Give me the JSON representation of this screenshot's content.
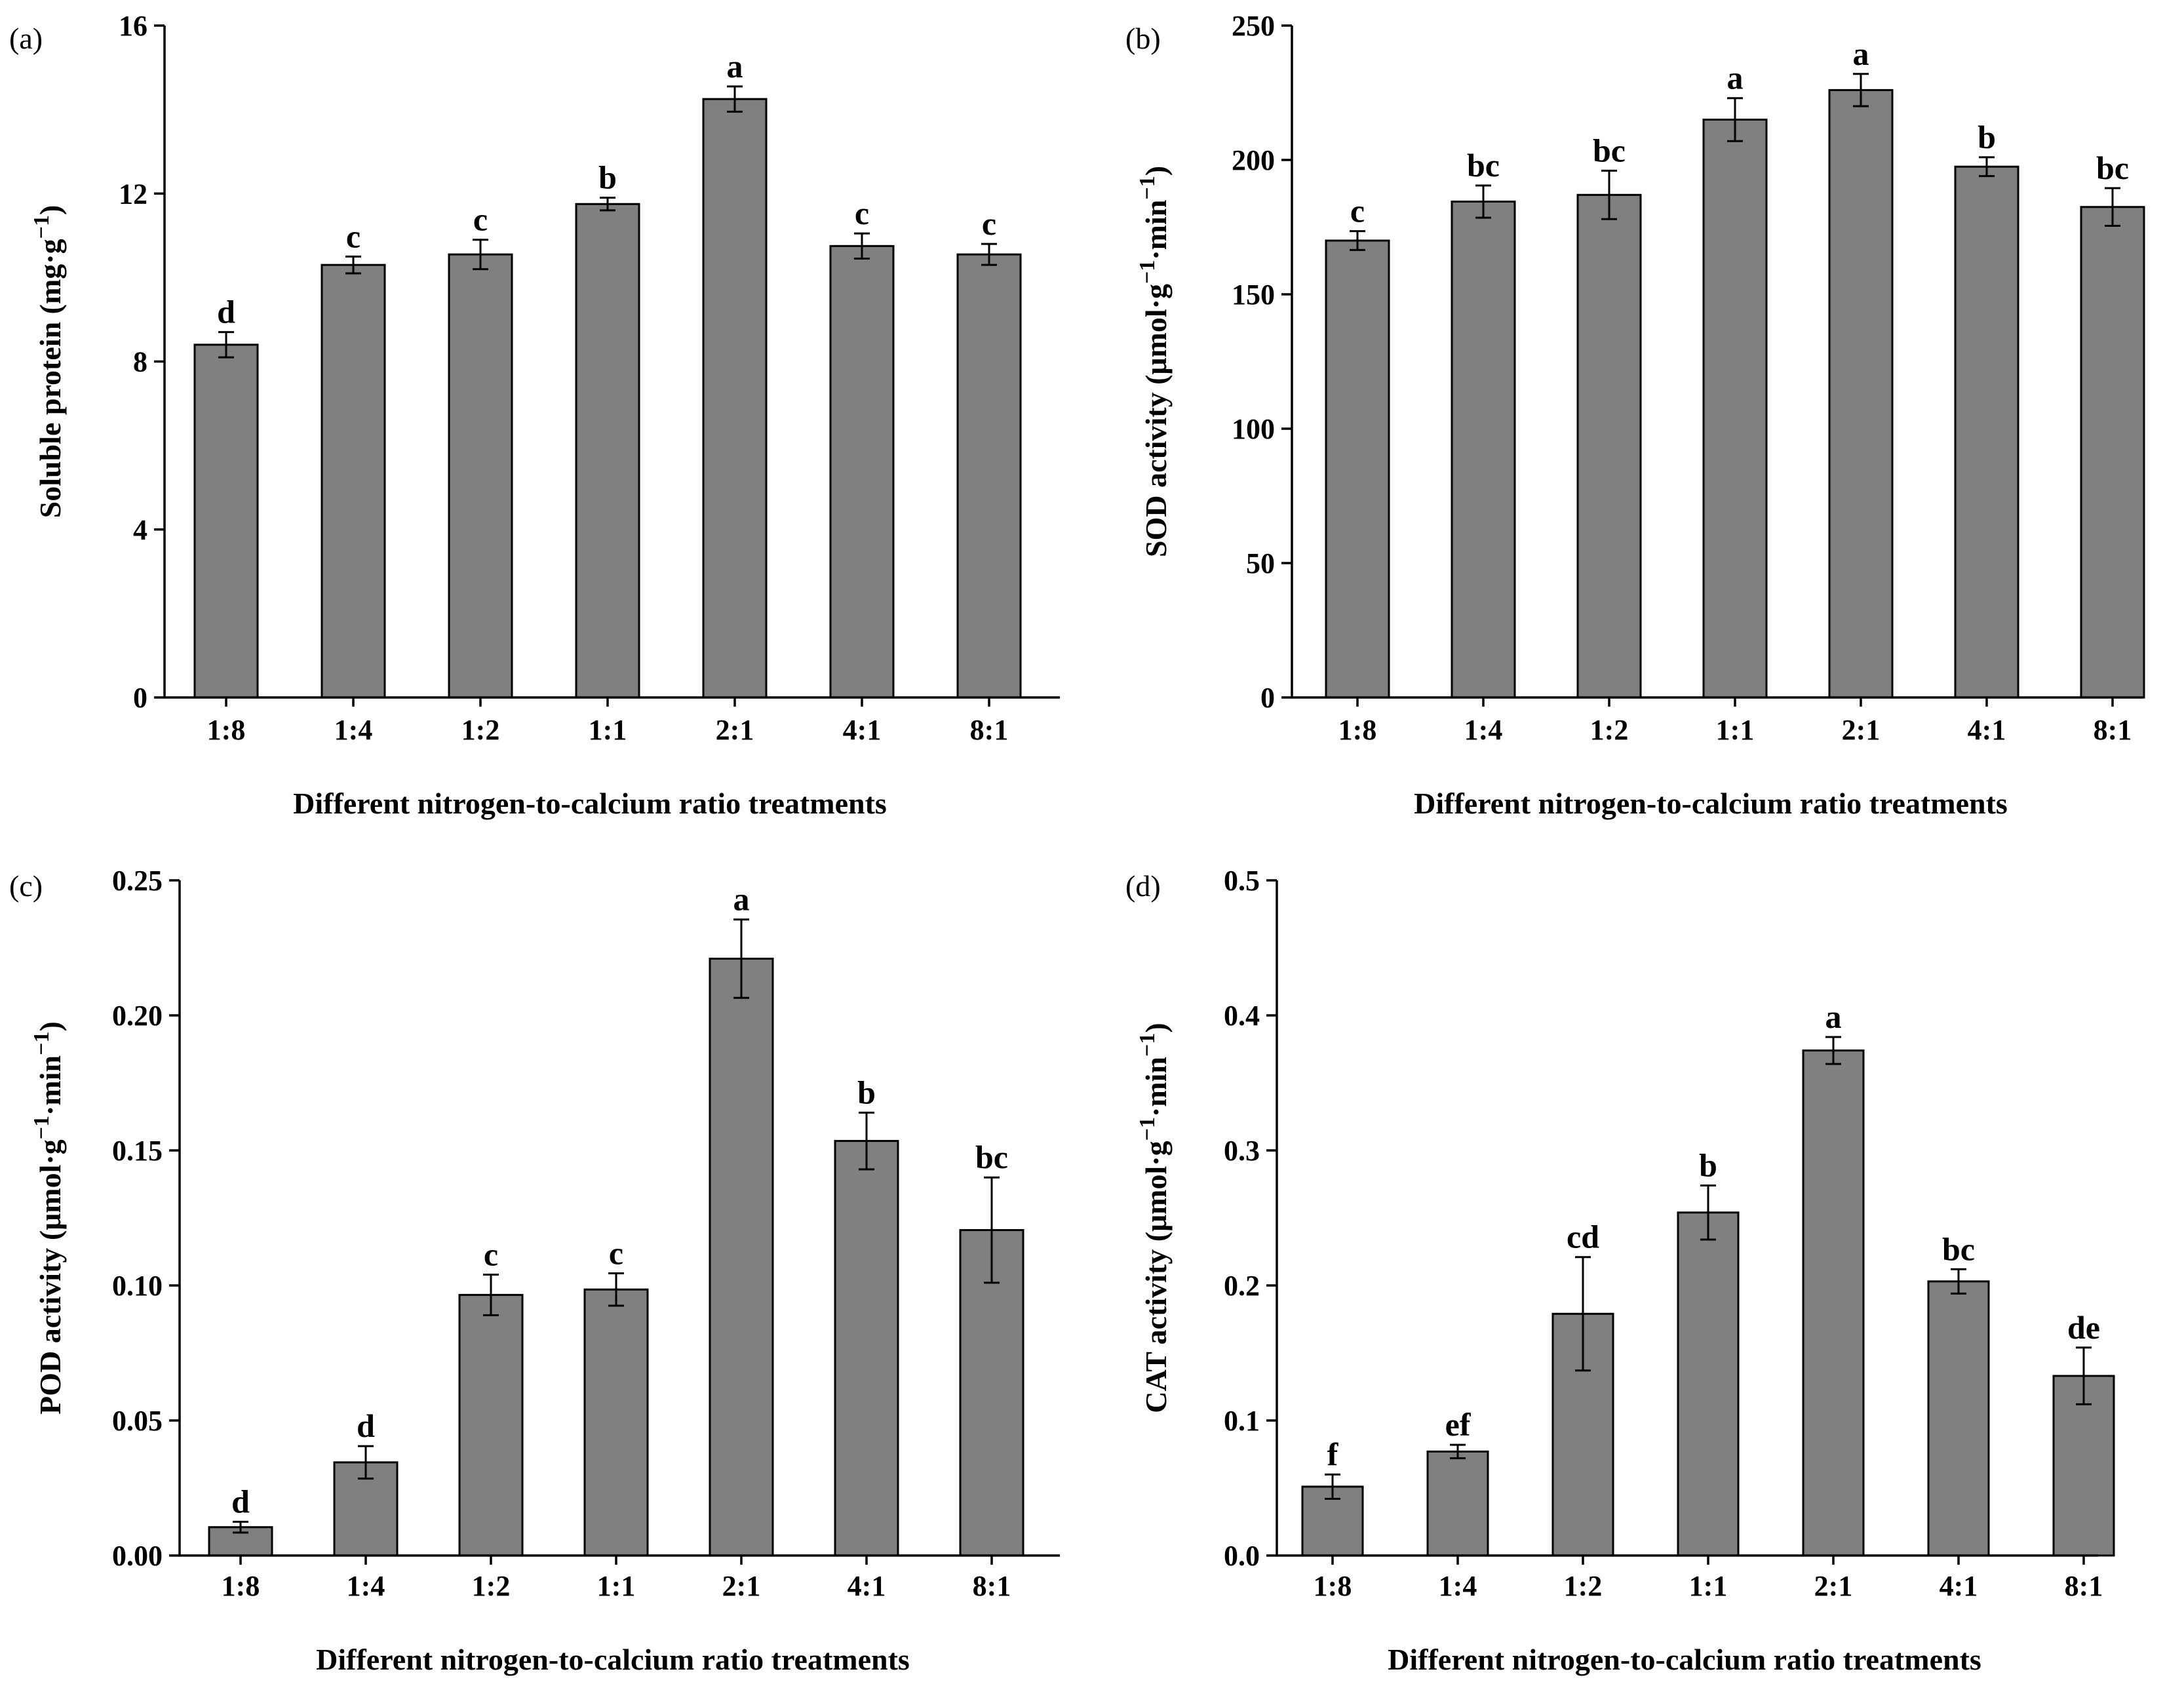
{
  "figure": {
    "x_categories": [
      "1:8",
      "1:4",
      "1:2",
      "1:1",
      "2:1",
      "4:1",
      "8:1"
    ],
    "xlabel": "Different nitrogen-to-calcium ratio treatments"
  },
  "chart_data": [
    {
      "panel": "(a)",
      "type": "bar",
      "categories": [
        "1:8",
        "1:4",
        "1:2",
        "1:1",
        "2:1",
        "4:1",
        "8:1"
      ],
      "values": [
        8.4,
        10.3,
        10.55,
        11.75,
        14.25,
        10.75,
        10.55
      ],
      "errors": [
        0.3,
        0.2,
        0.35,
        0.15,
        0.3,
        0.3,
        0.25
      ],
      "significance": [
        "d",
        "c",
        "c",
        "b",
        "a",
        "c",
        "c"
      ],
      "xlabel": "Different nitrogen-to-calcium ratio treatments",
      "ylabel": "Soluble protein  (mg·g",
      "ylabel_sup": "−1",
      "ylabel_tail": ")",
      "ylim": [
        0,
        16
      ],
      "yticks": [
        0,
        4,
        8,
        12,
        16
      ],
      "ytick_labels": [
        "0",
        "4",
        "8",
        "12",
        "16"
      ]
    },
    {
      "panel": "(b)",
      "type": "bar",
      "categories": [
        "1:8",
        "1:4",
        "1:2",
        "1:1",
        "2:1",
        "4:1",
        "8:1"
      ],
      "values": [
        170,
        184.5,
        187,
        215,
        226,
        197.5,
        182.5
      ],
      "errors": [
        3.5,
        6,
        9,
        8,
        6,
        3.5,
        7
      ],
      "significance": [
        "c",
        "bc",
        "bc",
        "a",
        "a",
        "b",
        "bc"
      ],
      "xlabel": "Different nitrogen-to-calcium ratio treatments",
      "ylabel": "SOD activity (μmol·g",
      "ylabel_sup": "−1",
      "ylabel_tail": "·min",
      "ylabel_sup2": "−1",
      "ylabel_end": ")",
      "ylim": [
        0,
        250
      ],
      "yticks": [
        0,
        50,
        100,
        150,
        200,
        250
      ],
      "ytick_labels": [
        "0",
        "50",
        "100",
        "150",
        "200",
        "250"
      ]
    },
    {
      "panel": "(c)",
      "type": "bar",
      "categories": [
        "1:8",
        "1:4",
        "1:2",
        "1:1",
        "2:1",
        "4:1",
        "8:1"
      ],
      "values": [
        0.0105,
        0.0345,
        0.0965,
        0.0985,
        0.221,
        0.1535,
        0.1205
      ],
      "errors": [
        0.002,
        0.006,
        0.0075,
        0.006,
        0.0145,
        0.0105,
        0.0195
      ],
      "significance": [
        "d",
        "d",
        "c",
        "c",
        "a",
        "b",
        "bc"
      ],
      "xlabel": "Different nitrogen-to-calcium ratio treatments",
      "ylabel": "POD activity (μmol·g",
      "ylabel_sup": "−1",
      "ylabel_tail": "·min",
      "ylabel_sup2": "−1",
      "ylabel_end": ")",
      "ylim": [
        0,
        0.25
      ],
      "yticks": [
        0,
        0.05,
        0.1,
        0.15,
        0.2,
        0.25
      ],
      "ytick_labels": [
        "0.00",
        "0.05",
        "0.10",
        "0.15",
        "0.20",
        "0.25"
      ]
    },
    {
      "panel": "(d)",
      "type": "bar",
      "categories": [
        "1:8",
        "1:4",
        "1:2",
        "1:1",
        "2:1",
        "4:1",
        "8:1"
      ],
      "values": [
        0.051,
        0.077,
        0.179,
        0.254,
        0.374,
        0.203,
        0.133
      ],
      "errors": [
        0.009,
        0.005,
        0.042,
        0.02,
        0.01,
        0.009,
        0.021
      ],
      "significance": [
        "f",
        "ef",
        "cd",
        "b",
        "a",
        "bc",
        "de"
      ],
      "xlabel": "Different nitrogen-to-calcium ratio treatments",
      "ylabel": "CAT activity (μmol·g",
      "ylabel_sup": "−1",
      "ylabel_tail": "·min",
      "ylabel_sup2": "−1",
      "ylabel_end": ")",
      "ylim": [
        0,
        0.5
      ],
      "yticks": [
        0,
        0.1,
        0.2,
        0.3,
        0.4,
        0.5
      ],
      "ytick_labels": [
        "0.0",
        "0.1",
        "0.2",
        "0.3",
        "0.4",
        "0.5"
      ]
    }
  ]
}
